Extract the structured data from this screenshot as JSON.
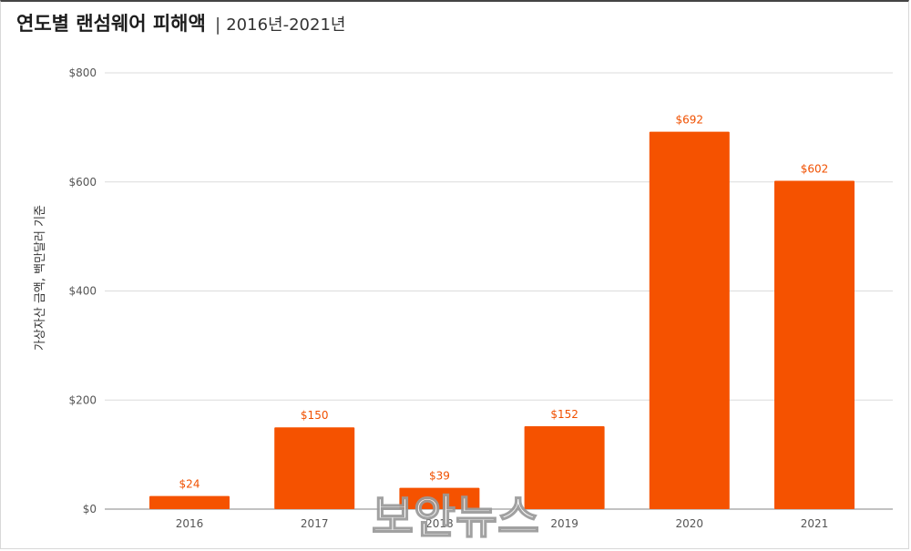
{
  "header": {
    "title": "연도별 랜섬웨어 피해액",
    "separator": "|",
    "subtitle": "2016년-2021년"
  },
  "watermark": "보안뉴스",
  "colors": {
    "bar": "#f55200",
    "label": "#f05000",
    "grid": "#dcdcdc",
    "axis": "#9e9e9e"
  },
  "chart_data": {
    "type": "bar",
    "categories": [
      "2016",
      "2017",
      "2018",
      "2019",
      "2020",
      "2021"
    ],
    "values": [
      24,
      150,
      39,
      152,
      692,
      602
    ],
    "value_labels": [
      "$24",
      "$150",
      "$39",
      "$152",
      "$692",
      "$602"
    ],
    "ylabel": "가상자산 금액, 백만달러 기준",
    "ylim": [
      0,
      800
    ],
    "yticks": [
      0,
      200,
      400,
      600,
      800
    ],
    "ytick_labels": [
      "$0",
      "$200",
      "$400",
      "$600",
      "$800"
    ],
    "grid": true,
    "legend": "none"
  }
}
